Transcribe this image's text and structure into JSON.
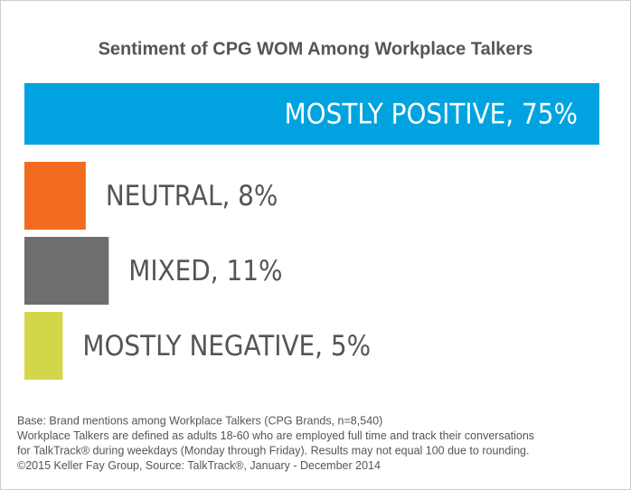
{
  "chart_data": {
    "type": "bar",
    "orientation": "horizontal",
    "title": "Sentiment of CPG WOM Among Workplace Talkers",
    "values": [
      75,
      8,
      11,
      5
    ],
    "value_labels": [
      "MOSTLY POSITIVE, 75%",
      "NEUTRAL, 8%",
      "MIXED, 11%",
      "MOSTLY NEGATIVE, 5%"
    ],
    "colors": [
      "#00a3e0",
      "#f26b21",
      "#6d6e70",
      "#d4d64a"
    ],
    "notes": [
      "Base: Brand mentions among Workplace Talkers (CPG Brands, n=8,540)",
      "Workplace Talkers are defined as adults 18-60 who are employed full time and track their conversations",
      "for TalkTrack® during weekdays (Monday through Friday). Results may not equal 100 due to rounding.",
      "©2015 Keller Fay Group, Source: TalkTrack®, January - December 2014"
    ]
  }
}
